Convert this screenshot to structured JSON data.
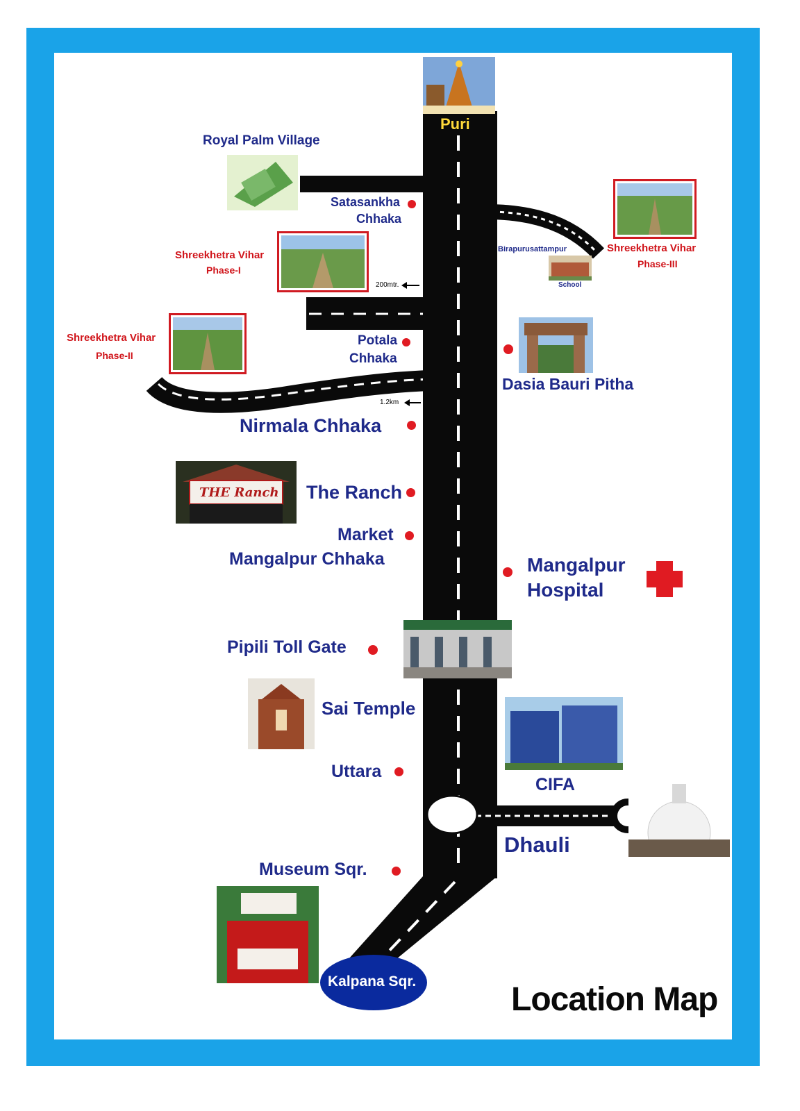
{
  "title": "Location Map",
  "colors": {
    "frame": "#1aa3e8",
    "road": "#0a0a0a",
    "label": "#1f2a8a",
    "accent": "#d0141a",
    "badge": "#0a2a9e"
  },
  "icons": {
    "hospital": "red-cross-icon",
    "distance": "arrow-left-icon"
  },
  "places": {
    "puri": "Puri",
    "royal_palm": "Royal Palm Village",
    "satasankha_1": "Satasankha",
    "satasankha_2": "Chhaka",
    "phase1_1": "Shreekhetra Vihar",
    "phase1_2": "Phase-I",
    "phase2_1": "Shreekhetra Vihar",
    "phase2_2": "Phase-II",
    "phase3_1": "Shreekhetra Vihar",
    "phase3_2": "Phase-III",
    "birapurusattampur": "Birapurusattampur",
    "school": "School",
    "dist_200": "200mtr.",
    "dist_12": "1.2km",
    "potala_1": "Potala",
    "potala_2": "Chhaka",
    "dasia": "Dasia Bauri Pitha",
    "nirmala": "Nirmala Chhaka",
    "ranch": "The Ranch",
    "ranch_sign": "THE Ranch",
    "market": "Market",
    "mangalpur_chhaka": "Mangalpur Chhaka",
    "hospital_1": "Mangalpur",
    "hospital_2": "Hospital",
    "pipili": "Pipili Toll Gate",
    "sai": "Sai Temple",
    "cifa": "CIFA",
    "uttara": "Uttara",
    "dhauli": "Dhauli",
    "museum": "Museum Sqr.",
    "kalpana": "Kalpana Sqr."
  }
}
